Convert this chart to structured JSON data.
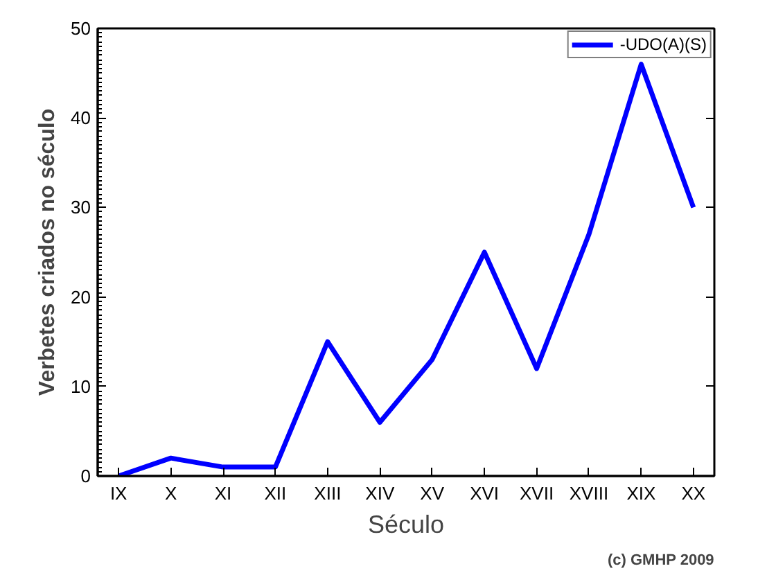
{
  "chart_data": {
    "type": "line",
    "xlabel": "Século",
    "ylabel": "Verbetes criados no século",
    "categories": [
      "IX",
      "X",
      "XI",
      "XII",
      "XIII",
      "XIV",
      "XV",
      "XVI",
      "XVII",
      "XVIII",
      "XIX",
      "XX"
    ],
    "series": [
      {
        "name": "-UDO(A)(S)",
        "color": "#0000ff",
        "values": [
          0,
          2,
          1,
          1,
          15,
          6,
          13,
          25,
          12,
          27,
          46,
          30
        ]
      }
    ],
    "ylim": [
      0,
      50
    ],
    "yticks": [
      0,
      10,
      20,
      30,
      40,
      50
    ],
    "grid": false,
    "legend": "top right",
    "marker": "none",
    "line_style": "solid",
    "annotations": [
      "(c) GMHP 2009"
    ]
  }
}
